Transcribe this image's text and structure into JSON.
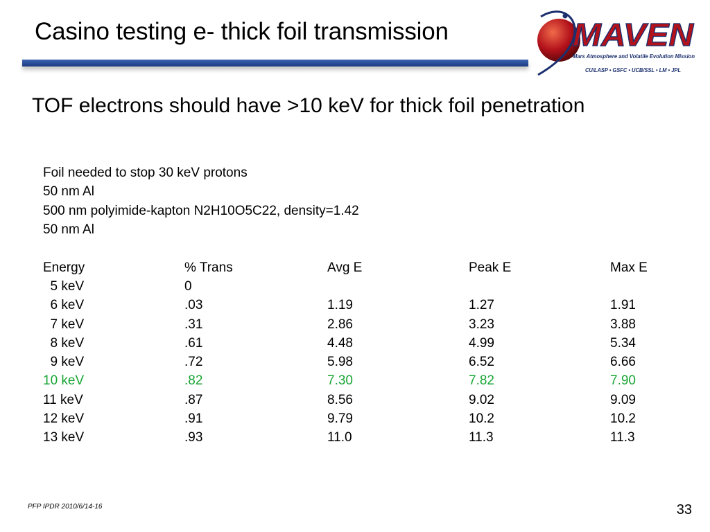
{
  "slide": {
    "title": "Casino testing e- thick foil transmission",
    "subtitle": "TOF electrons should have >10 keV for thick foil penetration",
    "foil_spec": [
      "Foil needed to stop 30 keV protons",
      "50 nm Al",
      "500 nm polyimide-kapton N2H10O5C22, density=1.42",
      "50 nm Al"
    ],
    "footer": "PFP IPDR 2010/6/14-16",
    "page_number": "33"
  },
  "logo": {
    "wordmark": "MAVEN",
    "tagline": "Mars Atmosphere and Volatile Evolution Mission",
    "partners": "CU/LASP • GSFC • UCB/SSL • LM • JPL"
  },
  "table": {
    "columns": [
      "Energy",
      "% Trans",
      "Avg E",
      "Peak E",
      "Max E"
    ],
    "rows": [
      {
        "energy": "  5 keV",
        "trans": "0",
        "avg": "",
        "peak": "",
        "max": "",
        "highlight": false
      },
      {
        "energy": "  6 keV",
        "trans": ".03",
        "avg": "1.19",
        "peak": "1.27",
        "max": "1.91",
        "highlight": false
      },
      {
        "energy": "  7 keV",
        "trans": ".31",
        "avg": "2.86",
        "peak": "3.23",
        "max": "3.88",
        "highlight": false
      },
      {
        "energy": "  8 keV",
        "trans": ".61",
        "avg": "4.48",
        "peak": "4.99",
        "max": "5.34",
        "highlight": false
      },
      {
        "energy": "  9 keV",
        "trans": ".72",
        "avg": "5.98",
        "peak": "6.52",
        "max": "6.66",
        "highlight": false
      },
      {
        "energy": "10 keV",
        "trans": ".82",
        "avg": "7.30",
        "peak": "7.82",
        "max": "7.90",
        "highlight": true
      },
      {
        "energy": "11 keV",
        "trans": ".87",
        "avg": "8.56",
        "peak": "9.02",
        "max": "9.09",
        "highlight": false
      },
      {
        "energy": "12 keV",
        "trans": ".91",
        "avg": "9.79",
        "peak": "10.2",
        "max": "10.2",
        "highlight": false
      },
      {
        "energy": "13 keV",
        "trans": ".93",
        "avg": "11.0",
        "peak": "11.3",
        "max": "11.3",
        "highlight": false
      }
    ]
  },
  "colors": {
    "title_bar": "#2a4d9a",
    "highlight_row": "#18a533",
    "logo_red": "#b3121b",
    "logo_blue": "#1b2f6e"
  }
}
